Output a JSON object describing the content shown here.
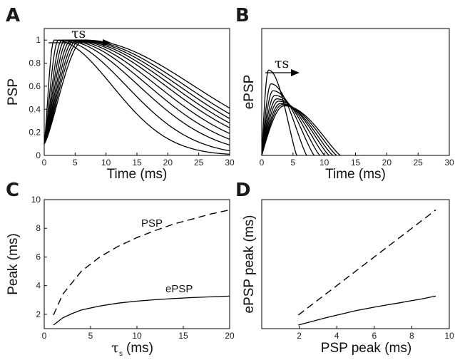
{
  "chart_data": [
    {
      "panel": "A",
      "type": "line",
      "xlabel": "Time (ms)",
      "ylabel": "PSP",
      "xlim": [
        0,
        30
      ],
      "ylim": [
        0,
        1.1
      ],
      "xticks": [
        "0",
        "5",
        "10",
        "15",
        "20",
        "25",
        "30"
      ],
      "yticks": [
        "0",
        "0.2",
        "0.4",
        "0.6",
        "0.8",
        "1"
      ],
      "annotation": "τs",
      "curves": [
        {
          "peak_time": 1.6,
          "end_value": 0.01
        },
        {
          "peak_time": 2.3,
          "end_value": 0.04
        },
        {
          "peak_time": 2.9,
          "end_value": 0.09
        },
        {
          "peak_time": 3.4,
          "end_value": 0.14
        },
        {
          "peak_time": 3.9,
          "end_value": 0.19
        },
        {
          "peak_time": 4.4,
          "end_value": 0.24
        },
        {
          "peak_time": 4.9,
          "end_value": 0.28
        },
        {
          "peak_time": 5.4,
          "end_value": 0.32
        },
        {
          "peak_time": 5.9,
          "end_value": 0.36
        },
        {
          "peak_time": 6.5,
          "end_value": 0.41
        }
      ]
    },
    {
      "panel": "B",
      "type": "line",
      "xlabel": "Time (ms)",
      "ylabel": "ePSP",
      "xlim": [
        0,
        30
      ],
      "ylim": [
        0,
        1.1
      ],
      "xticks": [
        "0",
        "5",
        "10",
        "15",
        "20",
        "25",
        "30"
      ],
      "yticks": [],
      "annotation": "τs",
      "curves": [
        {
          "peak_time": 1.1,
          "peak_value": 0.74,
          "end_time": 5.6
        },
        {
          "peak_time": 1.5,
          "peak_value": 0.62,
          "end_time": 7.2
        },
        {
          "peak_time": 1.8,
          "peak_value": 0.56,
          "end_time": 8.4
        },
        {
          "peak_time": 2.1,
          "peak_value": 0.52,
          "end_time": 9.3
        },
        {
          "peak_time": 2.4,
          "peak_value": 0.49,
          "end_time": 10.1
        },
        {
          "peak_time": 2.7,
          "peak_value": 0.47,
          "end_time": 10.8
        },
        {
          "peak_time": 3.0,
          "peak_value": 0.45,
          "end_time": 11.4
        },
        {
          "peak_time": 3.3,
          "peak_value": 0.44,
          "end_time": 12.0
        },
        {
          "peak_time": 3.6,
          "peak_value": 0.43,
          "end_time": 12.6
        }
      ]
    },
    {
      "panel": "C",
      "type": "line",
      "xlabel": "(ms)",
      "xlabel_symbol": "τ",
      "xlabel_sub": "s",
      "ylabel": "Peak (ms)",
      "xlim": [
        0,
        20
      ],
      "ylim": [
        1,
        10
      ],
      "xticks": [
        "0",
        "5",
        "10",
        "15",
        "20"
      ],
      "yticks": [
        "2",
        "4",
        "6",
        "8",
        "10"
      ],
      "series": [
        {
          "name": "PSP",
          "style": "dashed",
          "x": [
            1,
            2,
            4,
            6,
            8,
            10,
            12,
            14,
            16,
            18,
            20
          ],
          "values": [
            1.95,
            3.4,
            5.0,
            6.0,
            6.75,
            7.35,
            7.85,
            8.3,
            8.65,
            9.0,
            9.28
          ]
        },
        {
          "name": "ePSP",
          "style": "solid",
          "x": [
            1,
            2,
            3,
            4,
            6,
            8,
            10,
            12,
            14,
            16,
            18,
            20
          ],
          "values": [
            1.25,
            1.75,
            2.05,
            2.3,
            2.58,
            2.78,
            2.92,
            3.02,
            3.1,
            3.17,
            3.22,
            3.27
          ]
        }
      ]
    },
    {
      "panel": "D",
      "type": "line",
      "xlabel": "PSP peak (ms)",
      "ylabel": "ePSP peak (ms)",
      "xlim": [
        0,
        10
      ],
      "ylim": [
        1,
        10
      ],
      "xticks": [
        "2",
        "4",
        "6",
        "8",
        "10"
      ],
      "yticks": [],
      "series": [
        {
          "name": "",
          "style": "dashed",
          "x": [
            1.95,
            9.28
          ],
          "values": [
            1.95,
            9.28
          ]
        },
        {
          "name": "",
          "style": "solid",
          "x": [
            1.95,
            3.4,
            5.0,
            6.0,
            6.75,
            7.35,
            7.85,
            8.3,
            8.65,
            9.0,
            9.28
          ],
          "values": [
            1.25,
            1.75,
            2.25,
            2.5,
            2.67,
            2.8,
            2.92,
            3.02,
            3.1,
            3.2,
            3.27
          ]
        }
      ]
    }
  ]
}
